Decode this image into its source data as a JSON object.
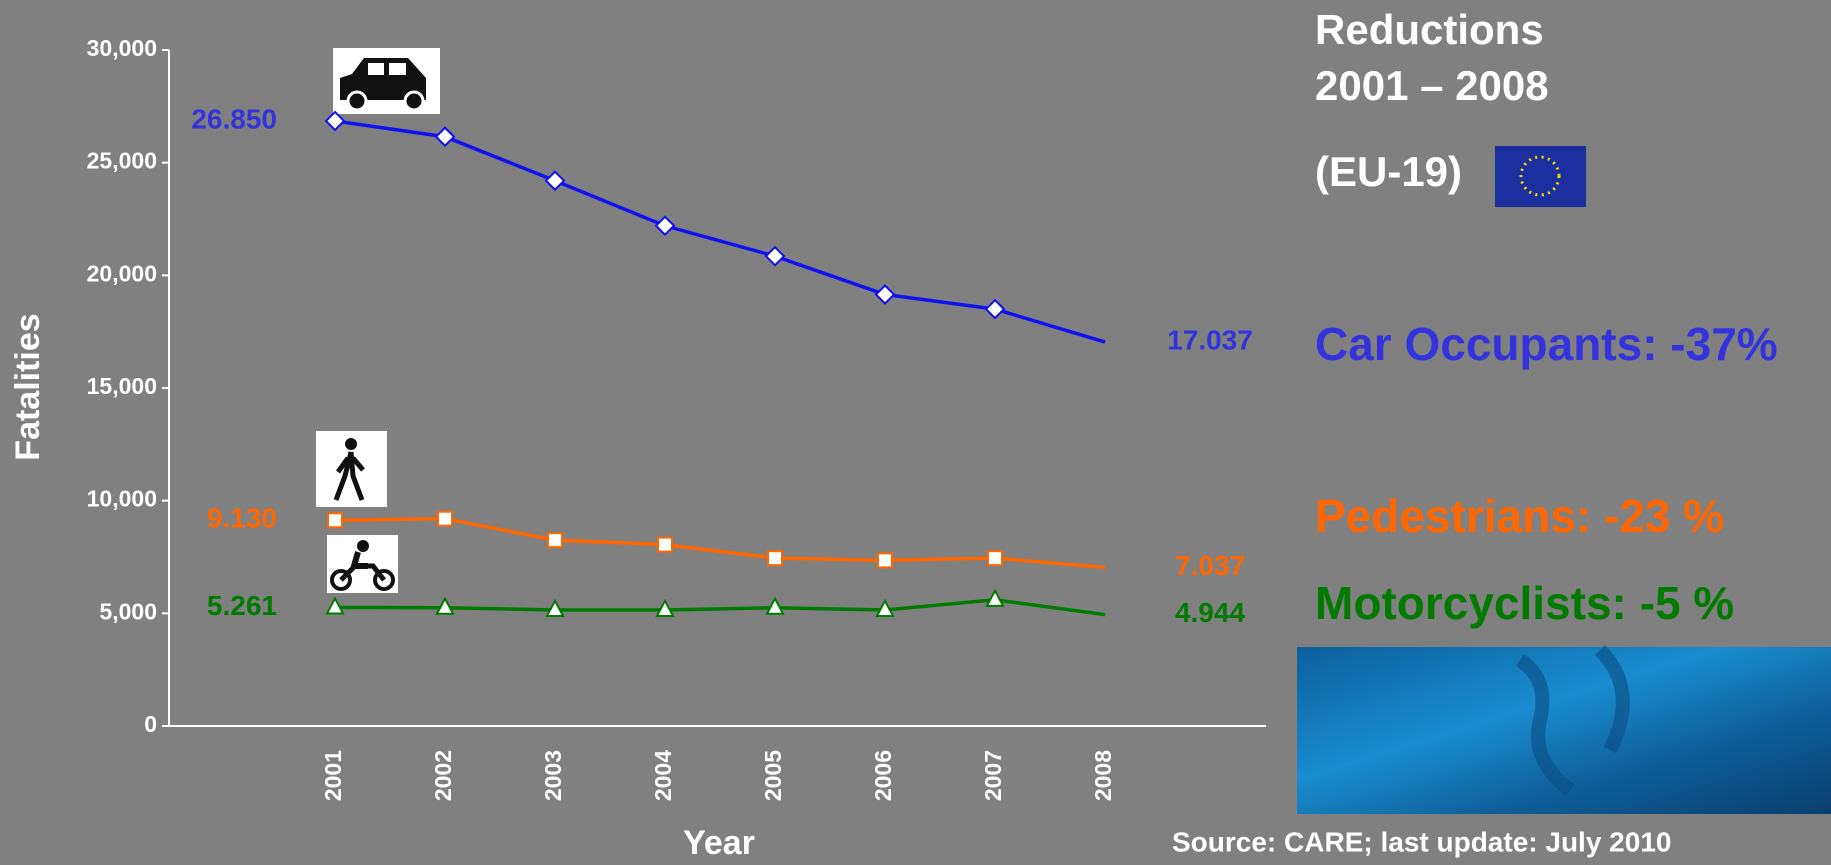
{
  "chart_data": {
    "type": "line",
    "title": "Reductions",
    "subtitle": "2001 – 2008",
    "region": "(EU-19)",
    "y_label": "Fatalities",
    "x_label": "Year",
    "source": "Source: CARE; last update: July 2010",
    "categories": [
      "2001",
      "2002",
      "2003",
      "2004",
      "2005",
      "2006",
      "2007",
      "2008"
    ],
    "ylim": [
      0,
      30000
    ],
    "yticks": [
      0,
      {
        "value": 5000,
        "label": "5,000"
      },
      {
        "value": 10000,
        "label": "10,000"
      },
      {
        "value": 15000,
        "label": "15,000"
      },
      {
        "value": 20000,
        "label": "20,000"
      },
      {
        "value": 25000,
        "label": "25,000"
      },
      {
        "value": 30000,
        "label": "30,000"
      }
    ],
    "series": [
      {
        "name": "Car Occupants: -37%",
        "color": "#1010f0",
        "label_color": "#3333dd",
        "marker": "diamond",
        "values": [
          26850,
          26150,
          24200,
          22200,
          20850,
          19150,
          18500,
          17037
        ],
        "value_labels": [
          "26.850",
          null,
          null,
          null,
          null,
          null,
          null,
          "17.037"
        ]
      },
      {
        "name": "Pedestrians: -23 %",
        "color": "#ff6600",
        "label_color": "#ff6600",
        "marker": "square",
        "values": [
          9130,
          9200,
          8250,
          8050,
          7450,
          7350,
          7450,
          7037
        ],
        "value_labels": [
          "9.130",
          null,
          null,
          null,
          null,
          null,
          null,
          "7.037"
        ]
      },
      {
        "name": "Motorcyclists: -5 %",
        "color": "#007a00",
        "label_color": "#007a00",
        "marker": "triangle",
        "values": [
          5261,
          5250,
          5150,
          5150,
          5250,
          5150,
          5600,
          4944
        ],
        "value_labels": [
          "5.261",
          null,
          null,
          null,
          null,
          null,
          null,
          "4.944"
        ]
      }
    ]
  }
}
